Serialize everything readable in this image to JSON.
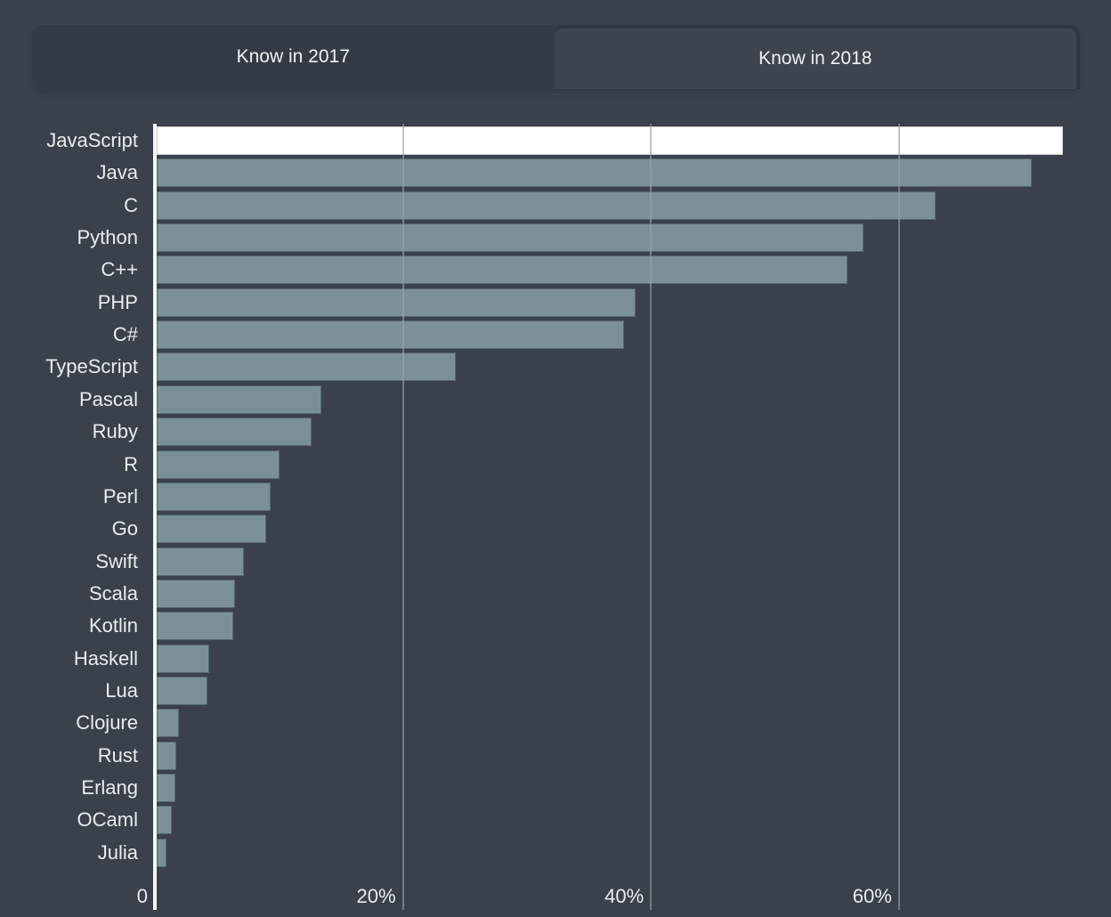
{
  "tabs": {
    "items": [
      {
        "label": "Know in 2017",
        "active": false
      },
      {
        "label": "Know in 2018",
        "active": true
      }
    ]
  },
  "chart_data": {
    "type": "bar",
    "orientation": "horizontal",
    "categories": [
      "JavaScript",
      "Java",
      "C",
      "Python",
      "C++",
      "PHP",
      "C#",
      "TypeScript",
      "Pascal",
      "Ruby",
      "R",
      "Perl",
      "Go",
      "Swift",
      "Scala",
      "Kotlin",
      "Haskell",
      "Lua",
      "Clojure",
      "Rust",
      "Erlang",
      "OCaml",
      "Julia"
    ],
    "values": [
      73.1,
      70.6,
      62.8,
      57.0,
      55.7,
      38.6,
      37.7,
      24.1,
      13.3,
      12.5,
      9.9,
      9.2,
      8.8,
      7.0,
      6.3,
      6.2,
      4.2,
      4.1,
      1.8,
      1.6,
      1.5,
      1.2,
      0.8
    ],
    "unit": "%",
    "highlight_category": "JavaScript",
    "x_ticks": [
      {
        "value": 0,
        "label": "0"
      },
      {
        "value": 20,
        "label": "20%"
      },
      {
        "value": 40,
        "label": "40%"
      },
      {
        "value": 60,
        "label": "60%"
      }
    ],
    "xlim": [
      0,
      77
    ],
    "grid": true,
    "legend": null,
    "colors": {
      "background": "#3a414d",
      "bar": "#7b9096",
      "highlight_bar": "#ffffff",
      "grid_line": "#99a1ad",
      "axis_line": "#f5f7f9",
      "label_text": "#e9ecef",
      "tab_inactive": "#343a46",
      "tab_active": "#3d4450",
      "tab_border": "#2f3540",
      "tab_text": "#eef1f4"
    }
  }
}
